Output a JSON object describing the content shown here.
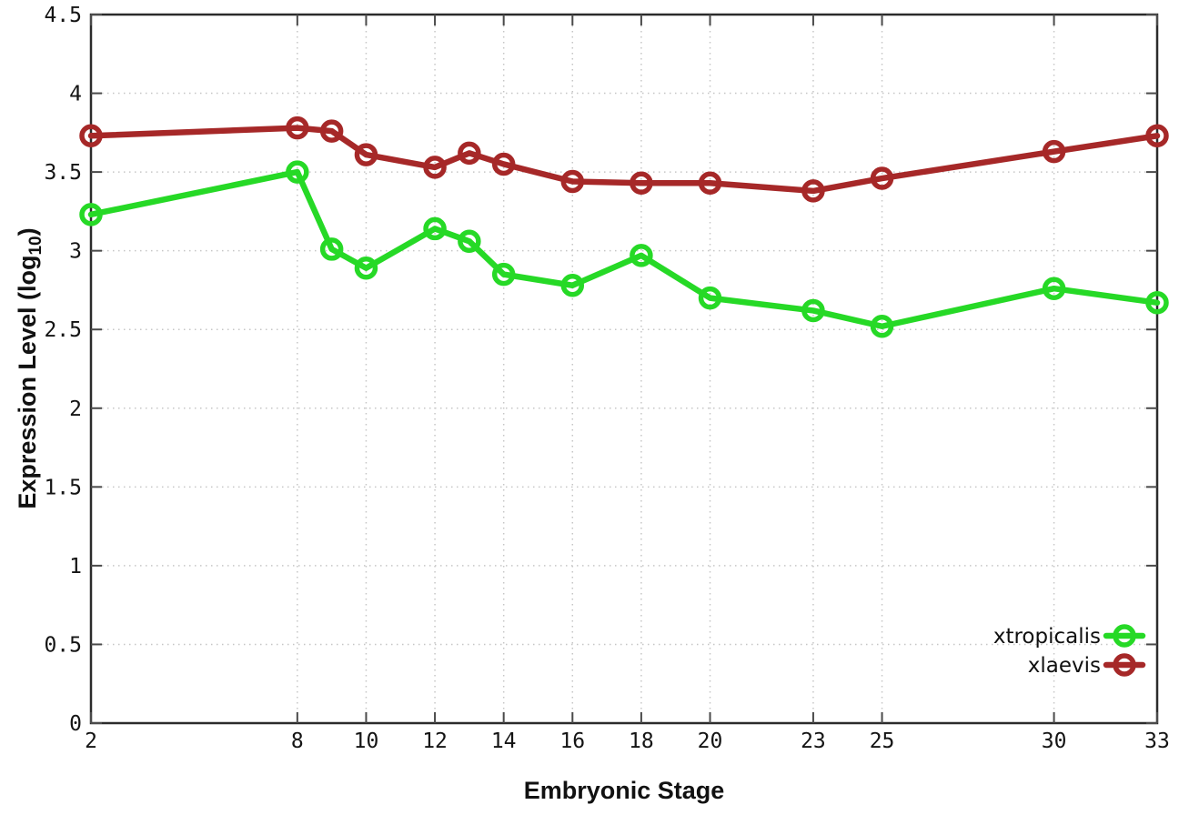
{
  "figure": {
    "background": "#ffffff",
    "x_axis_title": "Embryonic Stage",
    "y_axis_title_prefix": "Expression Level (log",
    "y_axis_title_sub": "10",
    "y_axis_title_suffix": ")"
  },
  "chart_data": {
    "type": "line",
    "title": "",
    "xlabel": "Embryonic Stage",
    "ylabel": "Expression Level (log10)",
    "x": [
      2,
      8,
      9,
      10,
      12,
      13,
      14,
      16,
      18,
      20,
      23,
      25,
      30,
      33
    ],
    "series": [
      {
        "name": "xtropicalis",
        "color": "#26d926",
        "values": [
          3.23,
          3.5,
          3.01,
          2.89,
          3.14,
          3.06,
          2.85,
          2.78,
          2.97,
          2.7,
          2.62,
          2.52,
          2.76,
          2.67
        ]
      },
      {
        "name": "xlaevis",
        "color": "#a62828",
        "values": [
          3.73,
          3.78,
          3.76,
          3.61,
          3.53,
          3.62,
          3.55,
          3.44,
          3.43,
          3.43,
          3.38,
          3.46,
          3.63,
          3.73
        ]
      }
    ],
    "xlim": [
      2,
      33
    ],
    "ylim": [
      0,
      4.5
    ],
    "xticks": {
      "values": [
        2,
        8,
        10,
        12,
        14,
        16,
        18,
        20,
        23,
        25,
        30,
        33
      ],
      "labels": [
        "2",
        "8",
        "10",
        "12",
        "14",
        "16",
        "18",
        "20",
        "23",
        "25",
        "30",
        "33"
      ]
    },
    "yticks": {
      "values": [
        0,
        0.5,
        1,
        1.5,
        2,
        2.5,
        3,
        3.5,
        4,
        4.5
      ],
      "labels": [
        "0",
        "0.5",
        "1",
        "1.5",
        "2",
        "2.5",
        "3",
        "3.5",
        "4",
        "4.5"
      ]
    },
    "grid": true,
    "legend_position": "bottom-right",
    "marker": "open-circle",
    "style": {
      "grid_color": "#c6c6c6",
      "border_color": "#2b2b2b",
      "tick_color": "#4a4a4a",
      "line_width": 6.5,
      "marker_radius": 10,
      "marker_stroke": 5.5
    }
  }
}
